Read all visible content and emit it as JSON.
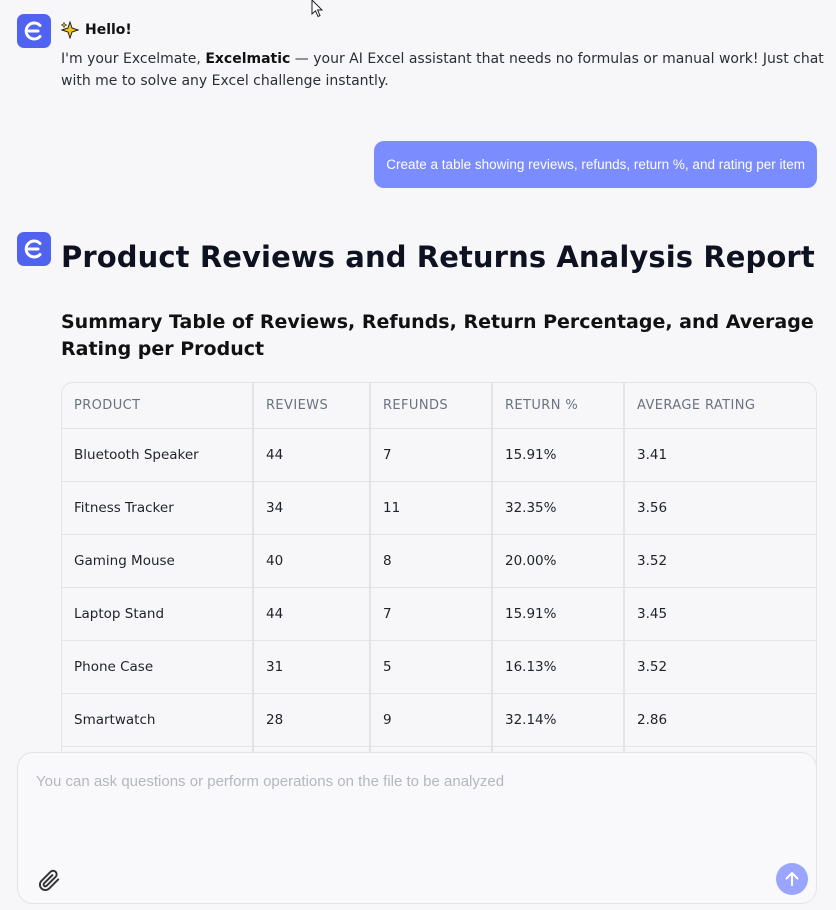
{
  "assistant_greeting": {
    "title": "Hello!",
    "intro_prefix": "I'm your Excelmate, ",
    "intro_brand": "Excelmatic",
    "intro_suffix": " — your AI Excel assistant that needs no formulas or manual work! Just chat with me to solve any Excel challenge instantly."
  },
  "user_message": "Create a table showing reviews, refunds, return %, and rating per item",
  "report": {
    "title": "Product Reviews and Returns Analysis Report",
    "section_title": "Summary Table of Reviews, Refunds, Return Percentage, and Average Rating per Product",
    "columns": [
      "PRODUCT",
      "REVIEWS",
      "REFUNDS",
      "RETURN %",
      "AVERAGE RATING"
    ],
    "rows": [
      [
        "Bluetooth Speaker",
        "44",
        "7",
        "15.91%",
        "3.41"
      ],
      [
        "Fitness Tracker",
        "34",
        "11",
        "32.35%",
        "3.56"
      ],
      [
        "Gaming Mouse",
        "40",
        "8",
        "20.00%",
        "3.52"
      ],
      [
        "Laptop Stand",
        "44",
        "7",
        "15.91%",
        "3.45"
      ],
      [
        "Phone Case",
        "31",
        "5",
        "16.13%",
        "3.52"
      ],
      [
        "Smartwatch",
        "28",
        "9",
        "32.14%",
        "2.86"
      ]
    ]
  },
  "composer": {
    "placeholder": "You can ask questions or perform operations on the file to be analyzed"
  },
  "colors": {
    "brand": "#4f63f0",
    "user_bubble": "#7b8cff",
    "send_button": "#9aa5ff"
  },
  "icons": {
    "avatar": "excelmatic-logo-icon",
    "greeting": "sparkle-icon",
    "attach": "paperclip-icon",
    "send": "arrow-up-icon"
  }
}
